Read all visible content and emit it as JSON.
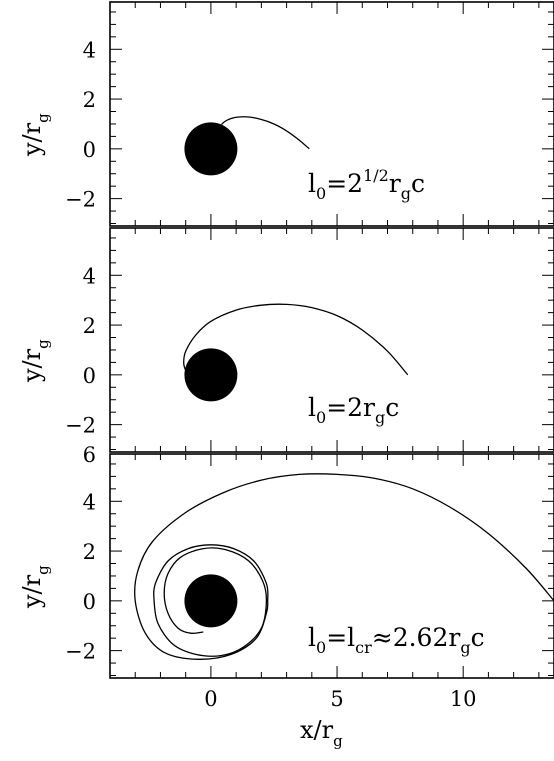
{
  "chart_data": [
    {
      "type": "line",
      "panel": "top",
      "label_parts": {
        "main": "l",
        "sub1": "0",
        "eq": "=2",
        "sup": "1/2",
        "r": "r",
        "sub2": "g",
        "end": "c"
      },
      "ylabel": {
        "main": "y/r",
        "sub": "g"
      },
      "xlim": [
        -4,
        13.6
      ],
      "ylim": [
        -3.1,
        5.9
      ],
      "yticks": [
        -2,
        0,
        2,
        4
      ],
      "ytick_labels": [
        "−2",
        "0",
        "2",
        "4"
      ],
      "black_hole_radius": 1.0,
      "series": [
        {
          "points": [
            [
              3.9,
              0.0
            ],
            [
              3.5,
              0.35
            ],
            [
              3.0,
              0.72
            ],
            [
              2.5,
              1.0
            ],
            [
              2.0,
              1.18
            ],
            [
              1.5,
              1.28
            ],
            [
              1.1,
              1.28
            ],
            [
              0.8,
              1.22
            ],
            [
              0.55,
              1.1
            ],
            [
              0.42,
              0.98
            ]
          ]
        }
      ]
    },
    {
      "type": "line",
      "panel": "middle",
      "label_parts": {
        "main": "l",
        "sub1": "0",
        "eq": "=2r",
        "sub2": "g",
        "end": "c"
      },
      "ylabel": {
        "main": "y/r",
        "sub": "g"
      },
      "xlim": [
        -4,
        13.6
      ],
      "ylim": [
        -3.1,
        5.9
      ],
      "yticks": [
        -2,
        0,
        2,
        4
      ],
      "ytick_labels": [
        "−2",
        "0",
        "2",
        "4"
      ],
      "black_hole_radius": 1.0,
      "series": [
        {
          "points": [
            [
              7.8,
              0.0
            ],
            [
              7.0,
              0.95
            ],
            [
              6.0,
              1.8
            ],
            [
              5.0,
              2.38
            ],
            [
              4.0,
              2.7
            ],
            [
              3.0,
              2.83
            ],
            [
              2.0,
              2.8
            ],
            [
              1.0,
              2.6
            ],
            [
              0.0,
              2.15
            ],
            [
              -0.6,
              1.6
            ],
            [
              -1.0,
              0.95
            ],
            [
              -1.08,
              0.5
            ],
            [
              -1.0,
              0.18
            ],
            [
              -0.85,
              0.0
            ]
          ]
        }
      ]
    },
    {
      "type": "line",
      "panel": "bottom",
      "label_parts": {
        "main": "l",
        "sub1": "0",
        "eq": "=l",
        "sub_cr": "cr",
        "approx": "≈2.62r",
        "sub2": "g",
        "end": "c"
      },
      "ylabel": {
        "main": "y/r",
        "sub": "g"
      },
      "xlabel": {
        "main": "x/r",
        "sub": "g"
      },
      "xlim": [
        -4,
        13.6
      ],
      "ylim": [
        -3.1,
        5.9
      ],
      "xticks": [
        0,
        5,
        10
      ],
      "xtick_labels": [
        "0",
        "5",
        "10"
      ],
      "yticks": [
        -2,
        0,
        2,
        4
      ],
      "ytick_labels": [
        "−2",
        "0",
        "2",
        "4"
      ],
      "black_hole_radius": 1.0,
      "series": [
        {
          "points": [
            [
              13.6,
              0.0
            ],
            [
              12.5,
              1.3
            ],
            [
              11.0,
              2.7
            ],
            [
              9.5,
              3.75
            ],
            [
              8.0,
              4.5
            ],
            [
              6.5,
              4.92
            ],
            [
              5.0,
              5.08
            ],
            [
              3.5,
              5.08
            ],
            [
              2.0,
              4.85
            ],
            [
              0.5,
              4.35
            ],
            [
              -1.0,
              3.55
            ],
            [
              -2.3,
              2.4
            ],
            [
              -2.9,
              1.2
            ],
            [
              -3.0,
              0.0
            ],
            [
              -2.6,
              -1.3
            ],
            [
              -1.8,
              -2.1
            ],
            [
              -0.5,
              -2.35
            ],
            [
              0.8,
              -2.15
            ],
            [
              1.8,
              -1.5
            ],
            [
              2.2,
              -0.5
            ],
            [
              2.25,
              0.0
            ],
            [
              2.2,
              0.7
            ],
            [
              1.7,
              1.6
            ],
            [
              0.9,
              2.1
            ],
            [
              0.0,
              2.25
            ],
            [
              -0.9,
              2.1
            ],
            [
              -1.7,
              1.6
            ],
            [
              -2.2,
              0.7
            ],
            [
              -2.25,
              0.0
            ],
            [
              -2.1,
              -0.9
            ],
            [
              -1.5,
              -1.75
            ],
            [
              -0.6,
              -2.15
            ],
            [
              0.4,
              -2.2
            ],
            [
              1.3,
              -1.85
            ],
            [
              2.0,
              -1.1
            ],
            [
              2.2,
              0.0
            ],
            [
              2.05,
              0.8
            ],
            [
              1.5,
              1.6
            ],
            [
              0.6,
              2.05
            ],
            [
              -0.3,
              2.1
            ],
            [
              -1.2,
              1.75
            ],
            [
              -1.7,
              1.1
            ],
            [
              -1.85,
              0.3
            ],
            [
              -1.7,
              -0.5
            ],
            [
              -1.3,
              -1.1
            ],
            [
              -0.8,
              -1.3
            ],
            [
              -0.3,
              -1.25
            ]
          ]
        }
      ]
    }
  ]
}
